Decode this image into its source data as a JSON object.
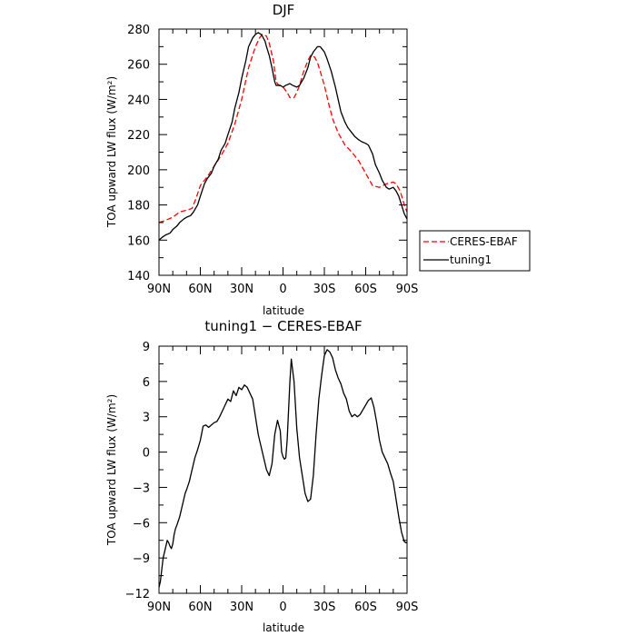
{
  "chart_data": [
    {
      "type": "line",
      "title": "DJF",
      "xlabel": "latitude",
      "ylabel": "TOA upward LW flux (W/m²)",
      "xlim": [
        90,
        -90
      ],
      "ylim": [
        140,
        280
      ],
      "xticks": [
        90,
        60,
        30,
        0,
        -30,
        -60,
        -90
      ],
      "xtick_labels": [
        "90N",
        "60N",
        "30N",
        "0",
        "30S",
        "60S",
        "90S"
      ],
      "yticks": [
        140,
        160,
        180,
        200,
        220,
        240,
        260,
        280
      ],
      "ytick_labels": [
        "140",
        "160",
        "180",
        "200",
        "220",
        "240",
        "260",
        "280"
      ],
      "grid": false,
      "legend_position": "right, outside plot",
      "series": [
        {
          "name": "CERES-EBAF",
          "color": "#ff0000",
          "style": "dashed",
          "x": [
            90,
            86,
            80,
            75,
            70,
            66,
            63,
            60,
            55,
            50,
            45,
            40,
            35,
            30,
            25,
            20,
            17,
            15,
            12,
            10,
            7,
            5,
            3,
            0,
            -3,
            -5,
            -8,
            -10,
            -12,
            -15,
            -18,
            -20,
            -23,
            -25,
            -27,
            -30,
            -33,
            -36,
            -40,
            -45,
            -50,
            -55,
            -60,
            -65,
            -70,
            -75,
            -80,
            -82,
            -85,
            -88,
            -90
          ],
          "y": [
            170,
            171,
            173,
            176,
            177,
            178,
            184,
            191,
            196,
            202,
            208,
            215,
            226,
            240,
            258,
            270,
            275,
            277,
            276,
            272,
            262,
            250,
            248,
            247,
            244,
            241,
            241,
            244,
            248,
            256,
            262,
            265,
            264,
            261,
            256,
            248,
            238,
            229,
            221,
            214,
            210,
            205,
            198,
            191,
            190,
            192,
            193,
            192,
            188,
            180,
            176
          ]
        },
        {
          "name": "tuning1",
          "color": "#000000",
          "style": "solid",
          "x": [
            90,
            87,
            85,
            82,
            80,
            77,
            75,
            72,
            70,
            67,
            65,
            62,
            60,
            57,
            55,
            52,
            50,
            47,
            45,
            42,
            40,
            37,
            35,
            32,
            30,
            27,
            25,
            22,
            20,
            18,
            16,
            15,
            13,
            12,
            10,
            8,
            6,
            5,
            3,
            2,
            0,
            -2,
            -5,
            -7,
            -10,
            -12,
            -15,
            -18,
            -20,
            -22,
            -25,
            -27,
            -28,
            -30,
            -32,
            -35,
            -38,
            -40,
            -42,
            -45,
            -47,
            -50,
            -52,
            -55,
            -57,
            -60,
            -62,
            -65,
            -67,
            -70,
            -72,
            -75,
            -77,
            -80,
            -82,
            -84,
            -86,
            -88,
            -90
          ],
          "y": [
            160,
            162,
            163,
            164,
            166,
            168,
            170,
            172,
            173,
            174,
            176,
            180,
            185,
            192,
            195,
            198,
            202,
            206,
            211,
            215,
            220,
            227,
            235,
            244,
            252,
            262,
            270,
            275,
            277,
            278,
            277,
            276,
            273,
            270,
            265,
            258,
            250,
            248,
            248,
            248,
            247,
            248,
            249,
            248,
            247,
            248,
            252,
            258,
            264,
            267,
            270,
            270,
            269,
            267,
            263,
            256,
            247,
            240,
            233,
            227,
            224,
            221,
            219,
            217,
            216,
            215,
            214,
            209,
            203,
            198,
            194,
            190,
            189,
            190,
            188,
            185,
            180,
            175,
            172
          ]
        }
      ]
    },
    {
      "type": "line",
      "title": "tuning1 − CERES-EBAF",
      "xlabel": "latitude",
      "ylabel": "TOA upward LW flux (W/m²)",
      "xlim": [
        90,
        -90
      ],
      "ylim": [
        -12,
        9
      ],
      "xticks": [
        90,
        60,
        30,
        0,
        -30,
        -60,
        -90
      ],
      "xtick_labels": [
        "90N",
        "60N",
        "30N",
        "0",
        "30S",
        "60S",
        "90S"
      ],
      "yticks": [
        -12,
        -9,
        -6,
        -3,
        0,
        3,
        6,
        9
      ],
      "ytick_labels": [
        "−12",
        "−9",
        "−6",
        "−3",
        "0",
        "3",
        "6",
        "9"
      ],
      "grid": false,
      "series": [
        {
          "color": "#000000",
          "style": "solid",
          "x": [
            90,
            89,
            88,
            87,
            86,
            85,
            84,
            83,
            82,
            81,
            80,
            79,
            78,
            77,
            75,
            73,
            71,
            70,
            68,
            66,
            64,
            62,
            60,
            58,
            56,
            54,
            52,
            50,
            48,
            46,
            44,
            42,
            40,
            38,
            36,
            34,
            32,
            30,
            28,
            26,
            24,
            22,
            20,
            18,
            16,
            14,
            12,
            10,
            8,
            6,
            4,
            2,
            1,
            0,
            -1,
            -2,
            -3,
            -4,
            -5,
            -6,
            -8,
            -10,
            -12,
            -14,
            -16,
            -18,
            -20,
            -22,
            -24,
            -26,
            -28,
            -30,
            -32,
            -34,
            -36,
            -38,
            -40,
            -42,
            -44,
            -46,
            -48,
            -50,
            -52,
            -54,
            -56,
            -58,
            -60,
            -62,
            -64,
            -66,
            -68,
            -70,
            -72,
            -74,
            -76,
            -78,
            -80,
            -82,
            -84,
            -86,
            -88,
            -89,
            -90
          ],
          "y": [
            -11.5,
            -11.0,
            -10.0,
            -9.0,
            -8.5,
            -8.0,
            -7.5,
            -7.7,
            -8.0,
            -8.2,
            -7.8,
            -7.0,
            -6.5,
            -6.2,
            -5.5,
            -4.5,
            -3.5,
            -3.2,
            -2.5,
            -1.5,
            -0.5,
            0.2,
            1.0,
            2.2,
            2.3,
            2.1,
            2.3,
            2.5,
            2.6,
            3.0,
            3.5,
            4.0,
            4.5,
            4.3,
            5.2,
            4.8,
            5.5,
            5.3,
            5.7,
            5.5,
            5.0,
            4.5,
            3.0,
            1.5,
            0.5,
            -0.5,
            -1.5,
            -2.0,
            -1.0,
            1.5,
            2.7,
            1.8,
            0.0,
            -0.4,
            -0.6,
            -0.5,
            1.0,
            3.5,
            6.0,
            7.9,
            6.0,
            2.0,
            -0.5,
            -2.0,
            -3.5,
            -4.2,
            -4.0,
            -2.0,
            1.5,
            4.5,
            6.5,
            8.2,
            8.7,
            8.5,
            8.0,
            7.0,
            6.3,
            5.8,
            5.0,
            4.5,
            3.5,
            3.0,
            3.2,
            3.0,
            3.2,
            3.6,
            4.0,
            4.4,
            4.6,
            3.8,
            2.5,
            1.0,
            0.0,
            -0.5,
            -1.0,
            -1.8,
            -2.5,
            -4.0,
            -5.5,
            -6.8,
            -7.6,
            -7.7,
            -7.7
          ]
        }
      ]
    }
  ]
}
